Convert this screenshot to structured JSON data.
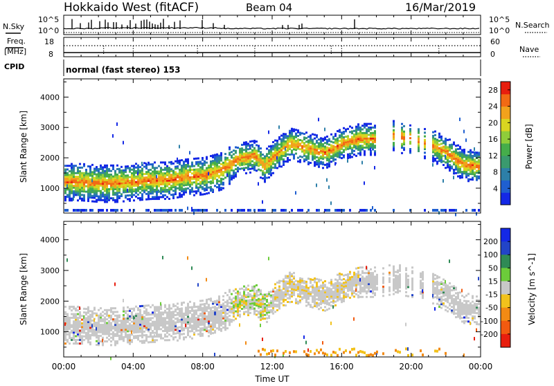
{
  "header": {
    "title": "Hokkaido West (fitACF)",
    "beam": "Beam 04",
    "date": "16/Mar/2019"
  },
  "left_labels": {
    "nsky": "N.Sky",
    "freq_line1": "Freq.",
    "freq_line2": "[MHz]",
    "cpid": "CPID"
  },
  "right_labels": {
    "nsearch": "N.Search",
    "nave": "Nave"
  },
  "noise_panel": {
    "tick_top": "10^5",
    "tick_bottom": "10^0",
    "right_tick_top": "10^5",
    "right_tick_bottom": "10^0"
  },
  "freq_panel": {
    "left_ticks": [
      "18",
      "8"
    ],
    "right_ticks": [
      "60",
      "0"
    ]
  },
  "cpid_text": "normal (fast stereo) 153",
  "chart_data": [
    {
      "type": "heatmap",
      "title": "",
      "xlabel": "",
      "ylabel": "Slant Range [km]",
      "x_range": [
        "00:00",
        "00:00"
      ],
      "ylim": [
        180,
        4600
      ],
      "y_ticks": [
        "1000",
        "2000",
        "3000",
        "4000"
      ],
      "colorbar": {
        "label": "Power [dB]",
        "ticks": [
          "4",
          "8",
          "12",
          "16",
          "20",
          "24",
          "28"
        ],
        "range": [
          0,
          30
        ],
        "colors": [
          "#1428e6",
          "#1f5fd0",
          "#2d7fa8",
          "#3a9a6e",
          "#45ad4a",
          "#8fcd3a",
          "#d9d520",
          "#f2a21c",
          "#f26a14",
          "#e81e0e"
        ]
      },
      "echo_band_center_km": [
        [
          0,
          1250
        ],
        [
          1,
          1250
        ],
        [
          2,
          1200
        ],
        [
          3,
          1200
        ],
        [
          4,
          1250
        ],
        [
          5,
          1300
        ],
        [
          6,
          1300
        ],
        [
          7,
          1400
        ],
        [
          8,
          1450
        ],
        [
          9,
          1600
        ],
        [
          10,
          2000
        ],
        [
          11,
          2100
        ],
        [
          11.5,
          1750
        ],
        [
          12,
          2050
        ],
        [
          13,
          2500
        ],
        [
          14,
          2350
        ],
        [
          15,
          2200
        ],
        [
          16,
          2500
        ],
        [
          17,
          2650
        ],
        [
          18,
          2650
        ],
        [
          19,
          2750
        ],
        [
          20,
          2650
        ],
        [
          21,
          2500
        ],
        [
          22,
          2200
        ],
        [
          23,
          1800
        ],
        [
          24,
          1750
        ]
      ]
    },
    {
      "type": "heatmap",
      "title": "",
      "xlabel": "Time UT",
      "ylabel": "Slant Range [km]",
      "x_ticks": [
        "00:00",
        "04:00",
        "08:00",
        "12:00",
        "16:00",
        "20:00",
        "00:00"
      ],
      "ylim": [
        180,
        4600
      ],
      "y_ticks": [
        "1000",
        "2000",
        "3000",
        "4000"
      ],
      "colorbar": {
        "label": "Velocity [m s^-1]",
        "ticks": [
          "200",
          "100",
          "50",
          "15",
          "-15",
          "-50",
          "-100",
          "-200"
        ],
        "colors": [
          "#1428e6",
          "#2244c8",
          "#2f8a55",
          "#6ccc3a",
          "#c8c8c8",
          "#f2c21c",
          "#f28a14",
          "#f25a10",
          "#e81e0e"
        ]
      }
    }
  ]
}
